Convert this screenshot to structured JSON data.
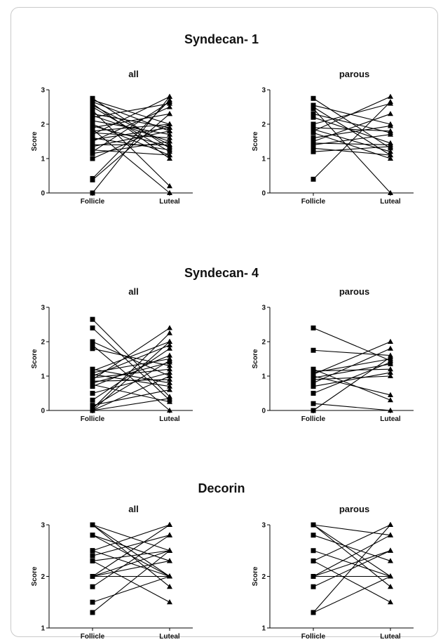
{
  "sections": [
    {
      "title": "Syndecan- 1"
    },
    {
      "title": "Syndecan- 4"
    },
    {
      "title": "Decorin"
    }
  ],
  "chart_data": [
    {
      "type": "line",
      "section": "Syndecan- 1",
      "title": "all",
      "ylabel": "Score",
      "xlabel": "",
      "categories": [
        "Follicle",
        "Luteal"
      ],
      "ylim": [
        0,
        3
      ],
      "yticks": [
        0,
        1,
        2,
        3
      ],
      "series": [
        {
          "values": [
            2.75,
            1.3
          ]
        },
        {
          "values": [
            2.7,
            2.0
          ]
        },
        {
          "values": [
            2.65,
            1.8
          ]
        },
        {
          "values": [
            2.6,
            1.0
          ]
        },
        {
          "values": [
            2.55,
            1.4
          ]
        },
        {
          "values": [
            2.5,
            1.2
          ]
        },
        {
          "values": [
            2.4,
            0.2
          ]
        },
        {
          "values": [
            2.3,
            1.9
          ]
        },
        {
          "values": [
            2.25,
            1.5
          ]
        },
        {
          "values": [
            2.2,
            2.6
          ]
        },
        {
          "values": [
            2.1,
            1.7
          ]
        },
        {
          "values": [
            2.0,
            1.1
          ]
        },
        {
          "values": [
            1.95,
            1.35
          ]
        },
        {
          "values": [
            1.9,
            2.3
          ]
        },
        {
          "values": [
            1.85,
            0.0
          ]
        },
        {
          "values": [
            1.8,
            2.0
          ]
        },
        {
          "values": [
            1.75,
            1.6
          ]
        },
        {
          "values": [
            1.7,
            2.8
          ]
        },
        {
          "values": [
            1.6,
            1.25
          ]
        },
        {
          "values": [
            1.55,
            1.9
          ]
        },
        {
          "values": [
            1.5,
            2.5
          ]
        },
        {
          "values": [
            1.4,
            1.4
          ]
        },
        {
          "values": [
            1.35,
            1.8
          ]
        },
        {
          "values": [
            1.25,
            1.1
          ]
        },
        {
          "values": [
            1.2,
            2.65
          ]
        },
        {
          "values": [
            1.15,
            1.5
          ]
        },
        {
          "values": [
            1.0,
            2.0
          ]
        },
        {
          "values": [
            0.42,
            2.7
          ]
        },
        {
          "values": [
            0.38,
            2.3
          ]
        },
        {
          "values": [
            0.0,
            2.8
          ]
        }
      ]
    },
    {
      "type": "line",
      "section": "Syndecan- 1",
      "title": "parous",
      "ylabel": "Score",
      "xlabel": "",
      "categories": [
        "Follicle",
        "Luteal"
      ],
      "ylim": [
        0,
        3
      ],
      "yticks": [
        0,
        1,
        2,
        3
      ],
      "series": [
        {
          "values": [
            2.75,
            1.3
          ]
        },
        {
          "values": [
            2.55,
            2.0
          ]
        },
        {
          "values": [
            2.5,
            1.1
          ]
        },
        {
          "values": [
            2.45,
            0.0
          ]
        },
        {
          "values": [
            2.3,
            1.75
          ]
        },
        {
          "values": [
            2.2,
            1.45
          ]
        },
        {
          "values": [
            2.0,
            2.6
          ]
        },
        {
          "values": [
            1.9,
            1.8
          ]
        },
        {
          "values": [
            1.85,
            1.2
          ]
        },
        {
          "values": [
            1.8,
            2.8
          ]
        },
        {
          "values": [
            1.75,
            1.0
          ]
        },
        {
          "values": [
            1.6,
            1.95
          ]
        },
        {
          "values": [
            1.5,
            2.3
          ]
        },
        {
          "values": [
            1.45,
            1.4
          ]
        },
        {
          "values": [
            1.4,
            1.7
          ]
        },
        {
          "values": [
            1.3,
            1.1
          ]
        },
        {
          "values": [
            1.2,
            1.35
          ]
        },
        {
          "values": [
            0.4,
            2.65
          ]
        }
      ]
    },
    {
      "type": "line",
      "section": "Syndecan- 4",
      "title": "all",
      "ylabel": "Score",
      "xlabel": "",
      "categories": [
        "Follicle",
        "Luteal"
      ],
      "ylim": [
        0,
        3
      ],
      "yticks": [
        0,
        1,
        2,
        3
      ],
      "series": [
        {
          "values": [
            2.65,
            0.4
          ]
        },
        {
          "values": [
            2.4,
            0.3
          ]
        },
        {
          "values": [
            2.0,
            1.0
          ]
        },
        {
          "values": [
            1.9,
            0.0
          ]
        },
        {
          "values": [
            1.8,
            1.3
          ]
        },
        {
          "values": [
            1.2,
            0.8
          ]
        },
        {
          "values": [
            1.15,
            2.0
          ]
        },
        {
          "values": [
            1.1,
            1.5
          ]
        },
        {
          "values": [
            1.05,
            0.7
          ]
        },
        {
          "values": [
            1.0,
            1.9
          ]
        },
        {
          "values": [
            0.95,
            1.2
          ]
        },
        {
          "values": [
            0.9,
            2.4
          ]
        },
        {
          "values": [
            0.85,
            0.9
          ]
        },
        {
          "values": [
            0.8,
            1.4
          ]
        },
        {
          "values": [
            0.75,
            0.25
          ]
        },
        {
          "values": [
            0.7,
            1.6
          ]
        },
        {
          "values": [
            0.5,
            1.1
          ]
        },
        {
          "values": [
            0.3,
            1.8
          ]
        },
        {
          "values": [
            0.15,
            0.6
          ]
        },
        {
          "values": [
            0.1,
            1.45
          ]
        },
        {
          "values": [
            0.05,
            2.25
          ]
        },
        {
          "values": [
            0.0,
            1.0
          ]
        },
        {
          "values": [
            0.0,
            2.0
          ]
        },
        {
          "values": [
            0.0,
            0.35
          ]
        }
      ]
    },
    {
      "type": "line",
      "section": "Syndecan- 4",
      "title": "parous",
      "ylabel": "Score",
      "xlabel": "",
      "categories": [
        "Follicle",
        "Luteal"
      ],
      "ylim": [
        0,
        3
      ],
      "yticks": [
        0,
        1,
        2,
        3
      ],
      "series": [
        {
          "values": [
            2.4,
            1.45
          ]
        },
        {
          "values": [
            1.75,
            1.6
          ]
        },
        {
          "values": [
            1.2,
            0.3
          ]
        },
        {
          "values": [
            1.15,
            1.2
          ]
        },
        {
          "values": [
            1.1,
            1.5
          ]
        },
        {
          "values": [
            1.05,
            2.0
          ]
        },
        {
          "values": [
            1.0,
            0.45
          ]
        },
        {
          "values": [
            0.95,
            1.35
          ]
        },
        {
          "values": [
            0.9,
            1.0
          ]
        },
        {
          "values": [
            0.8,
            1.8
          ]
        },
        {
          "values": [
            0.7,
            1.1
          ]
        },
        {
          "values": [
            0.5,
            1.4
          ]
        },
        {
          "values": [
            0.2,
            0.0
          ]
        },
        {
          "values": [
            0.0,
            1.55
          ]
        }
      ]
    },
    {
      "type": "line",
      "section": "Decorin",
      "title": "all",
      "ylabel": "Score",
      "xlabel": "",
      "categories": [
        "Follicle",
        "Luteal"
      ],
      "ylim": [
        1,
        3
      ],
      "yticks": [
        1,
        2,
        3
      ],
      "series": [
        {
          "values": [
            3.0,
            2.0
          ]
        },
        {
          "values": [
            3.0,
            2.5
          ]
        },
        {
          "values": [
            3.0,
            1.8
          ]
        },
        {
          "values": [
            2.8,
            2.3
          ]
        },
        {
          "values": [
            2.8,
            2.0
          ]
        },
        {
          "values": [
            2.5,
            3.0
          ]
        },
        {
          "values": [
            2.5,
            2.0
          ]
        },
        {
          "values": [
            2.4,
            2.8
          ]
        },
        {
          "values": [
            2.3,
            1.5
          ]
        },
        {
          "values": [
            2.3,
            2.5
          ]
        },
        {
          "values": [
            2.0,
            3.0
          ]
        },
        {
          "values": [
            2.0,
            2.3
          ]
        },
        {
          "values": [
            2.0,
            2.0
          ]
        },
        {
          "values": [
            2.0,
            2.5
          ]
        },
        {
          "values": [
            1.8,
            2.8
          ]
        },
        {
          "values": [
            1.5,
            2.0
          ]
        },
        {
          "values": [
            1.3,
            2.5
          ]
        }
      ]
    },
    {
      "type": "line",
      "section": "Decorin",
      "title": "parous",
      "ylabel": "Score",
      "xlabel": "",
      "categories": [
        "Follicle",
        "Luteal"
      ],
      "ylim": [
        1,
        3
      ],
      "yticks": [
        1,
        2,
        3
      ],
      "series": [
        {
          "values": [
            3.0,
            2.0
          ]
        },
        {
          "values": [
            3.0,
            2.8
          ]
        },
        {
          "values": [
            3.0,
            1.8
          ]
        },
        {
          "values": [
            2.8,
            2.3
          ]
        },
        {
          "values": [
            2.5,
            2.0
          ]
        },
        {
          "values": [
            2.3,
            3.0
          ]
        },
        {
          "values": [
            2.3,
            1.5
          ]
        },
        {
          "values": [
            2.0,
            2.5
          ]
        },
        {
          "values": [
            2.0,
            2.0
          ]
        },
        {
          "values": [
            2.0,
            2.8
          ]
        },
        {
          "values": [
            1.8,
            2.5
          ]
        },
        {
          "values": [
            1.3,
            3.0
          ]
        },
        {
          "values": [
            1.3,
            2.0
          ]
        }
      ]
    }
  ]
}
